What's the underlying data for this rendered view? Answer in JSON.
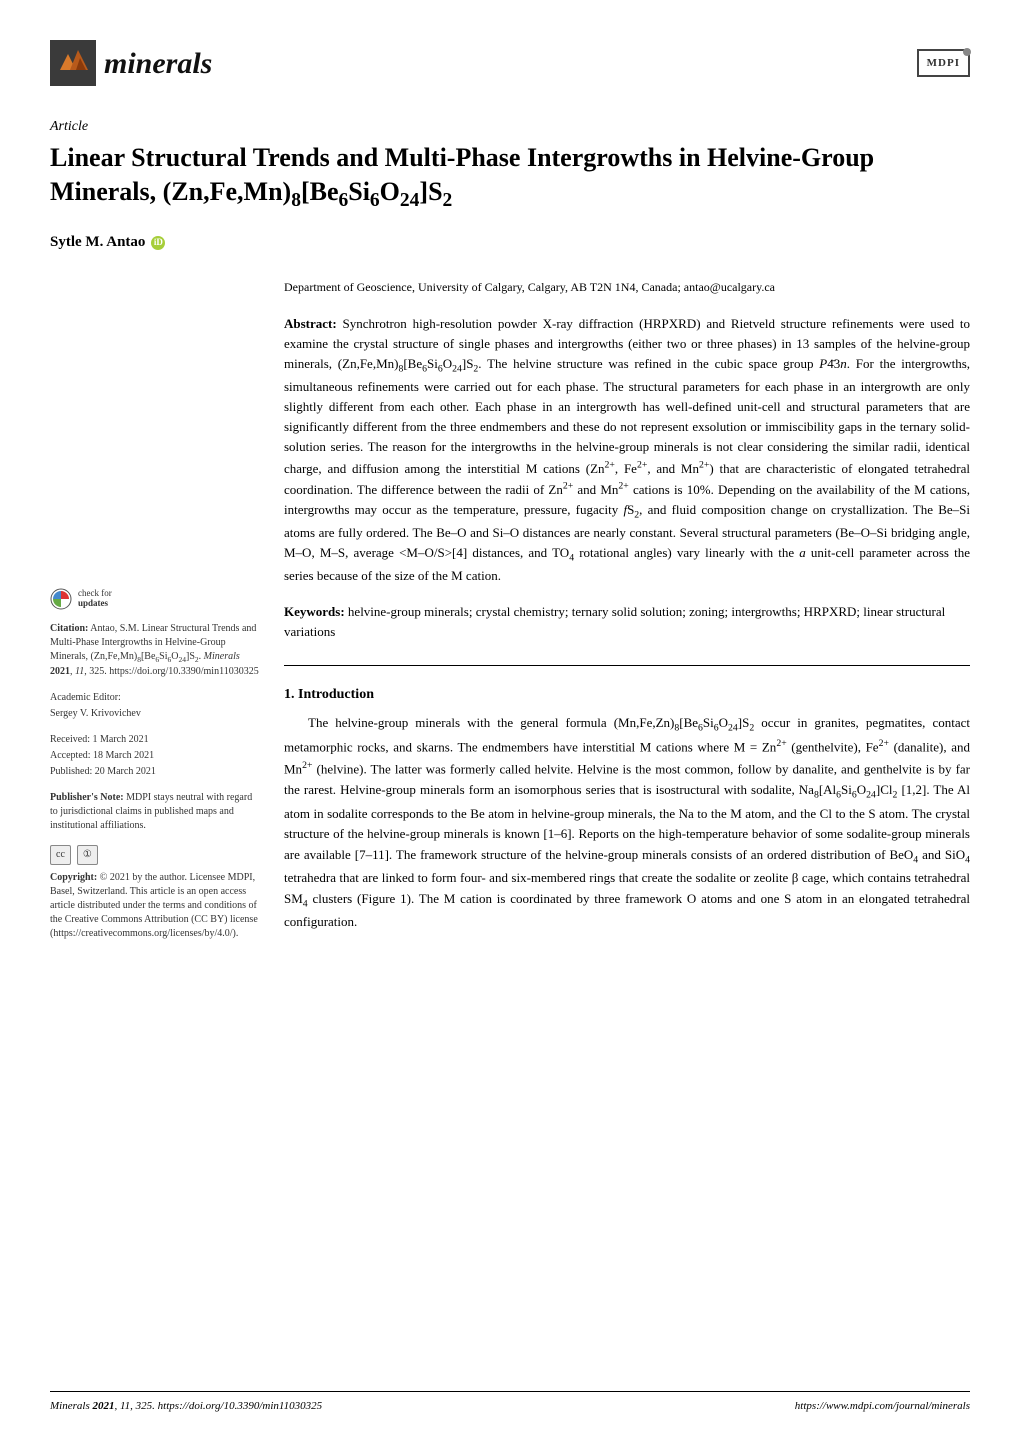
{
  "journal": {
    "name": "minerals",
    "icon_colors": {
      "bg": "#3a3a3a",
      "accent": "#d97a2b"
    }
  },
  "publisher_badge": "MDPI",
  "article_type": "Article",
  "title_html": "Linear Structural Trends and Multi-Phase Intergrowths in Helvine-Group Minerals, (Zn,Fe,Mn)<sub>8</sub>[Be<sub>6</sub>Si<sub>6</sub>O<sub>24</sub>]S<sub>2</sub>",
  "author": "Sytle M. Antao",
  "orcid_glyph": "iD",
  "affiliation": "Department of Geoscience, University of Calgary, Calgary, AB T2N 1N4, Canada; antao@ucalgary.ca",
  "abstract_label": "Abstract:",
  "abstract_html": "Synchrotron high-resolution powder X-ray diffraction (HRPXRD) and Rietveld structure refinements were used to examine the crystal structure of single phases and intergrowths (either two or three phases) in 13 samples of the helvine-group minerals, (Zn,Fe,Mn)<sub>8</sub>[Be<sub>6</sub>Si<sub>6</sub>O<sub>24</sub>]S<sub>2</sub>. The helvine structure was refined in the cubic space group <i>P</i>4̄3<i>n</i>. For the intergrowths, simultaneous refinements were carried out for each phase. The structural parameters for each phase in an intergrowth are only slightly different from each other. Each phase in an intergrowth has well-defined unit-cell and structural parameters that are significantly different from the three endmembers and these do not represent exsolution or immiscibility gaps in the ternary solid-solution series. The reason for the intergrowths in the helvine-group minerals is not clear considering the similar radii, identical charge, and diffusion among the interstitial M cations (Zn<sup>2+</sup>, Fe<sup>2+</sup>, and Mn<sup>2+</sup>) that are characteristic of elongated tetrahedral coordination. The difference between the radii of Zn<sup>2+</sup> and Mn<sup>2+</sup> cations is 10%. Depending on the availability of the M cations, intergrowths may occur as the temperature, pressure, fugacity <i>f</i>S<sub>2</sub>, and fluid composition change on crystallization. The Be–Si atoms are fully ordered. The Be–O and Si–O distances are nearly constant. Several structural parameters (Be–O–Si bridging angle, M–O, M–S, average &lt;M–O/S&gt;[4] distances, and TO<sub>4</sub> rotational angles) vary linearly with the <i>a</i> unit-cell parameter across the series because of the size of the M cation.",
  "keywords_label": "Keywords:",
  "keywords_text": "helvine-group minerals; crystal chemistry; ternary solid solution; zoning; intergrowths; HRPXRD; linear structural variations",
  "section1": {
    "number": "1.",
    "title": "Introduction"
  },
  "intro_html": "The helvine-group minerals with the general formula (Mn,Fe,Zn)<sub>8</sub>[Be<sub>6</sub>Si<sub>6</sub>O<sub>24</sub>]S<sub>2</sub> occur in granites, pegmatites, contact metamorphic rocks, and skarns. The endmembers have interstitial M cations where M = Zn<sup>2+</sup> (genthelvite), Fe<sup>2+</sup> (danalite), and Mn<sup>2+</sup> (helvine). The latter was formerly called helvite. Helvine is the most common, follow by danalite, and genthelvite is by far the rarest. Helvine-group minerals form an isomorphous series that is isostructural with sodalite, Na<sub>8</sub>[Al<sub>6</sub>Si<sub>6</sub>O<sub>24</sub>]Cl<sub>2</sub> [1,2]. The Al atom in sodalite corresponds to the Be atom in helvine-group minerals, the Na to the M atom, and the Cl to the S atom. The crystal structure of the helvine-group minerals is known [1–6]. Reports on the high-temperature behavior of some sodalite-group minerals are available [7–11]. The framework structure of the helvine-group minerals consists of an ordered distribution of BeO<sub>4</sub> and SiO<sub>4</sub> tetrahedra that are linked to form four- and six-membered rings that create the sodalite or zeolite β cage, which contains tetrahedral SM<sub>4</sub> clusters (Figure 1). The M cation is coordinated by three framework O atoms and one S atom in an elongated tetrahedral configuration.",
  "check_updates": {
    "line1": "check for",
    "line2": "updates"
  },
  "citation": {
    "label": "Citation:",
    "text_html": "Antao, S.M. Linear Structural Trends and Multi-Phase Intergrowths in Helvine-Group Minerals, (Zn,Fe,Mn)<sub>8</sub>[Be<sub>6</sub>Si<sub>6</sub>O<sub>24</sub>]S<sub>2</sub>. <i>Minerals</i> <b>2021</b>, <i>11</i>, 325. https://doi.org/10.3390/min11030325"
  },
  "editor": {
    "label": "Academic Editor:",
    "name": "Sergey V. Krivovichev"
  },
  "dates": {
    "received": "Received: 1 March 2021",
    "accepted": "Accepted: 18 March 2021",
    "published": "Published: 20 March 2021"
  },
  "publisher_note": {
    "label": "Publisher's Note:",
    "text": "MDPI stays neutral with regard to jurisdictional claims in published maps and institutional affiliations."
  },
  "cc": {
    "cc": "cc",
    "by": "①"
  },
  "copyright": {
    "label": "Copyright:",
    "text": "© 2021 by the author. Licensee MDPI, Basel, Switzerland. This article is an open access article distributed under the terms and conditions of the Creative Commons Attribution (CC BY) license (https://creativecommons.org/licenses/by/4.0/)."
  },
  "footer": {
    "left_html": "<i>Minerals</i> <b>2021</b>, <i>11</i>, 325. https://doi.org/10.3390/min11030325",
    "right": "https://www.mdpi.com/journal/minerals"
  },
  "colors": {
    "link": "#0066cc",
    "orcid": "#a6ce39"
  }
}
